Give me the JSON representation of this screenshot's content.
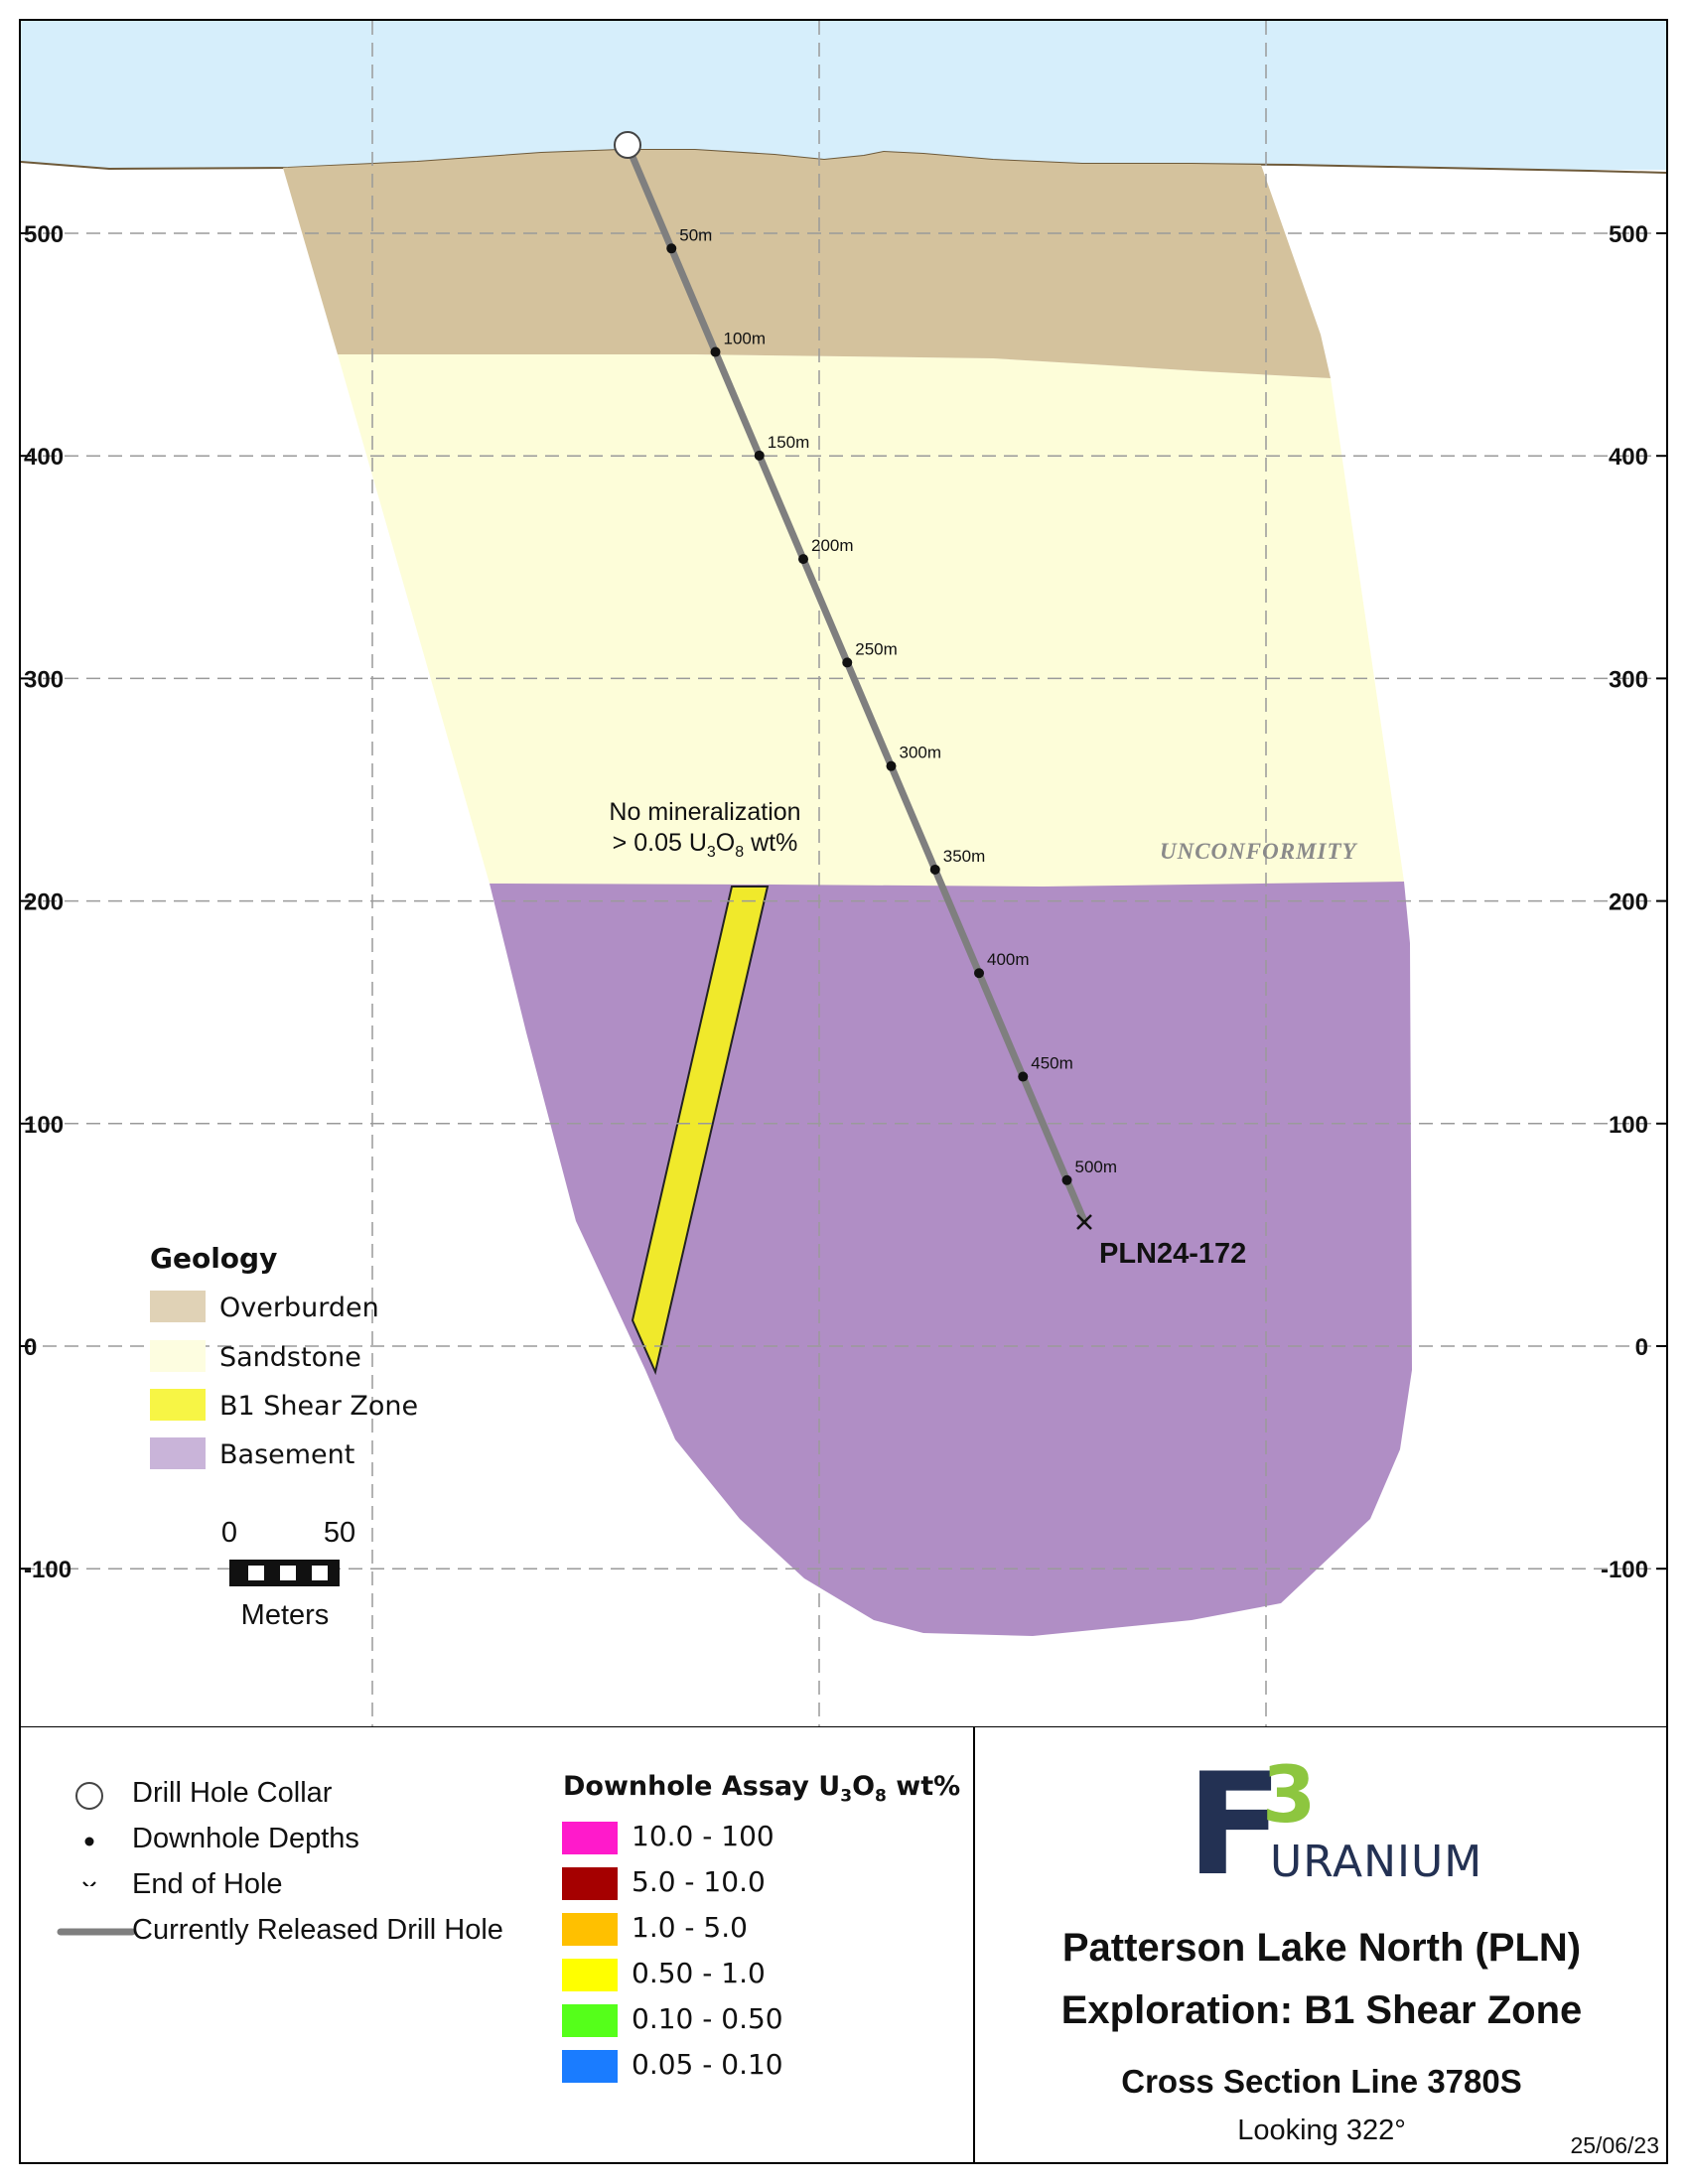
{
  "section": {
    "y_axis_ticks": [
      {
        "value": 500,
        "label": "500"
      },
      {
        "value": 400,
        "label": "400"
      },
      {
        "value": 300,
        "label": "300"
      },
      {
        "value": 200,
        "label": "200"
      },
      {
        "value": 100,
        "label": "100"
      },
      {
        "value": 0,
        "label": "0"
      },
      {
        "value": -100,
        "label": "-100"
      }
    ],
    "colors": {
      "sky": "#d6eefb",
      "overburden": "#d4c29d",
      "sandstone": "#fdfdd9",
      "b1_shear_zone": "#f0e92b",
      "basement": "#b08ec5",
      "drill_hole": "#7f7f7f",
      "grid": "#b0b0b0"
    },
    "drill_hole": {
      "name": "PLN24-172",
      "depth_labels": [
        "50m",
        "100m",
        "150m",
        "200m",
        "250m",
        "300m",
        "350m",
        "400m",
        "450m",
        "500m"
      ]
    },
    "annotation": {
      "line1": "No mineralization",
      "line2_prefix": "> 0.05 U",
      "line2_sub1": "3",
      "line2_mid": "O",
      "line2_sub2": "8",
      "line2_suffix": " wt%"
    },
    "unconformity_label": "UNCONFORMITY"
  },
  "geology_legend": {
    "title": "Geology",
    "items": [
      {
        "label": "Overburden",
        "color": "#e0d2b6"
      },
      {
        "label": "Sandstone",
        "color": "#fdfde0"
      },
      {
        "label": "B1 Shear Zone",
        "color": "#f7f545"
      },
      {
        "label": "Basement",
        "color": "#c9b4d9"
      }
    ]
  },
  "scale_bar": {
    "label_start": "0",
    "label_end": "50",
    "units": "Meters"
  },
  "symbol_legend": {
    "collar": "Drill Hole Collar",
    "depths": "Downhole Depths",
    "end_of_hole": "End of Hole",
    "released": "Currently Released Drill Hole"
  },
  "assay_legend": {
    "title_prefix": "Downhole Assay U",
    "title_sub1": "3",
    "title_mid": "O",
    "title_sub2": "8",
    "title_suffix": " wt%",
    "items": [
      {
        "label": "10.0 - 100",
        "color": "#ff1acb"
      },
      {
        "label": "5.0 - 10.0",
        "color": "#a50000"
      },
      {
        "label": "1.0 - 5.0",
        "color": "#ffc000"
      },
      {
        "label": "0.50 - 1.0",
        "color": "#ffff00"
      },
      {
        "label": "0.10 - 0.50",
        "color": "#55ff1a"
      },
      {
        "label": "0.05 - 0.10",
        "color": "#1a7cff"
      }
    ]
  },
  "title_block": {
    "logo_letter": "F",
    "logo_number": "3",
    "logo_word": "URANIUM",
    "logo_color_dark": "#233153",
    "logo_color_green": "#8dc63f",
    "title1": "Patterson Lake North (PLN)",
    "title2": "Exploration: B1 Shear Zone",
    "title3": "Cross Section Line 3780S",
    "looking": "Looking 322°",
    "date": "25/06/23"
  }
}
